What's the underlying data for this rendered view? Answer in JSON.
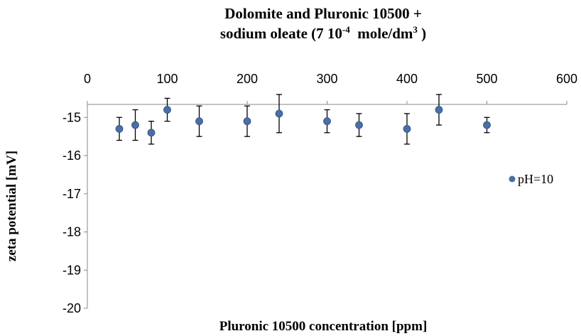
{
  "chart_data": {
    "type": "scatter",
    "title": {
      "line1": "Dolomite  and Pluronic 10500 +",
      "line2": [
        "sodium oleate (7 10",
        "-4",
        "  mole/dm",
        "3",
        " )"
      ]
    },
    "x_label": "Pluronic 10500 concentration [ppm]",
    "y_label": "zeta potential [mV]",
    "xlim": [
      0,
      600
    ],
    "xticks": [
      0,
      100,
      200,
      300,
      400,
      500,
      600
    ],
    "ylim": [
      -20,
      -14.66
    ],
    "yticks": [
      -20,
      -19,
      -18,
      -17,
      -16,
      -15
    ],
    "legend": "right",
    "series": [
      {
        "name": "pH=10",
        "color": "#4a6fa5",
        "x": [
          40,
          60,
          80,
          100,
          140,
          200,
          240,
          300,
          340,
          400,
          440,
          500
        ],
        "values": [
          -15.3,
          -15.2,
          -15.4,
          -14.8,
          -15.1,
          -15.1,
          -14.9,
          -15.1,
          -15.2,
          -15.3,
          -14.8,
          -15.2
        ],
        "errors": [
          0.3,
          0.4,
          0.3,
          0.3,
          0.4,
          0.4,
          0.5,
          0.3,
          0.3,
          0.4,
          0.4,
          0.2
        ]
      }
    ]
  }
}
